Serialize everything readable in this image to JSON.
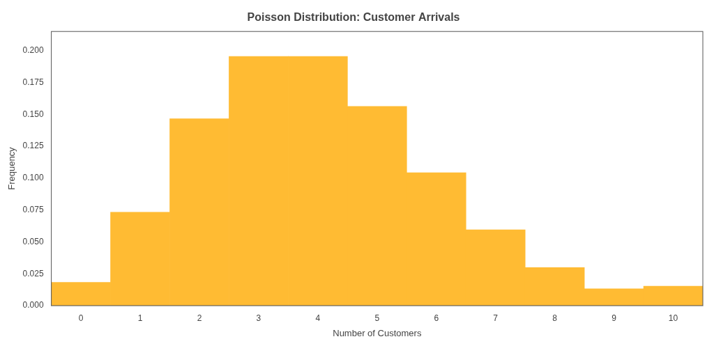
{
  "chart_data": {
    "type": "bar",
    "title": "Poisson Distribution: Customer Arrivals",
    "xlabel": "Number of Customers",
    "ylabel": "Frequency",
    "x": [
      0,
      1,
      2,
      3,
      4,
      5,
      6,
      7,
      8,
      9,
      10
    ],
    "values": [
      0.0183,
      0.0733,
      0.1465,
      0.1954,
      0.1954,
      0.1563,
      0.1042,
      0.0595,
      0.0298,
      0.0132,
      0.0153
    ],
    "color": "#FFBB33",
    "xlim": [
      -0.5,
      10.5
    ],
    "xticks": [
      0,
      1,
      2,
      3,
      4,
      5,
      6,
      7,
      8,
      9,
      10
    ],
    "ylim": [
      0,
      0.215
    ],
    "yticks": [
      {
        "value": 0,
        "label": "0.000"
      },
      {
        "value": 0.025,
        "label": "0.025"
      },
      {
        "value": 0.05,
        "label": "0.050"
      },
      {
        "value": 0.075,
        "label": "0.075"
      },
      {
        "value": 0.1,
        "label": "0.100"
      },
      {
        "value": 0.125,
        "label": "0.125"
      },
      {
        "value": 0.15,
        "label": "0.150"
      },
      {
        "value": 0.175,
        "label": "0.175"
      },
      {
        "value": 0.2,
        "label": "0.200"
      }
    ],
    "grid": false
  }
}
